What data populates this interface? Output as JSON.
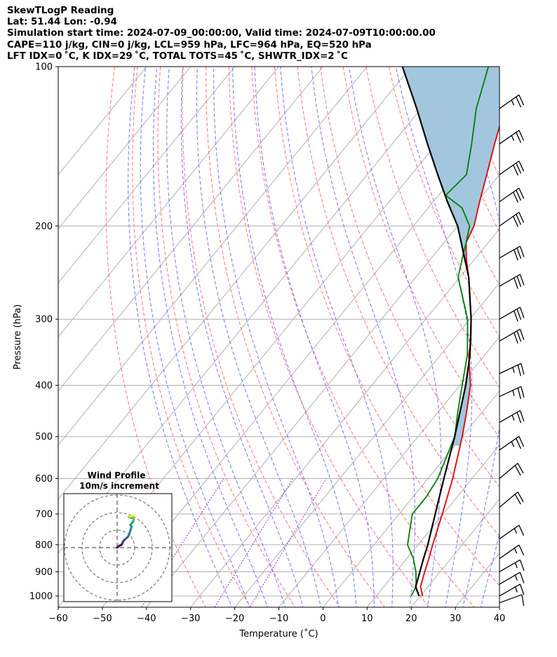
{
  "header": {
    "line1": "SkewTLogP Reading",
    "line2": "Lat: 51.44   Lon: -0.94",
    "line3": "Simulation start time: 2024-07-09_00:00:00, Valid time: 2024-07-09T10:00:00.00",
    "line4": "CAPE=110 j/kg, CIN=0 j/kg, LCL=959 hPa, LFC=964 hPa, EQ=520 hPa",
    "line5": "LFT IDX=0 ˚C, K IDX=29 ˚C, TOTAL TOTS=45 ˚C, SHWTR_IDX=2 ˚C"
  },
  "colors": {
    "temperature": "#e50000",
    "dewpoint": "#008000",
    "parcel": "#000000",
    "cape_fill": "#a3c6df",
    "dry_adiabat": "#ff6666",
    "moist_adiabat": "#6666ff",
    "mixing_ratio": "#9933cc",
    "isotherm": "#aaaaaa"
  },
  "chart_data": [
    {
      "type": "line",
      "title": "SkewTLogP Reading",
      "xlabel": "Temperature (˚C)",
      "ylabel": "Pressure (hPa)",
      "xlim": [
        -60,
        40
      ],
      "ylim": [
        1050,
        100
      ],
      "yscale": "log",
      "skew": true,
      "grid": true,
      "xticks": [
        -60,
        -50,
        -40,
        -30,
        -20,
        -10,
        0,
        10,
        20,
        30,
        40
      ],
      "yticks": [
        1000,
        900,
        800,
        700,
        600,
        500,
        400,
        300,
        200,
        100
      ],
      "series": [
        {
          "role": "temperature",
          "points": [
            [
              1000,
              20.5
            ],
            [
              960,
              18.3
            ],
            [
              900,
              16.5
            ],
            [
              850,
              15.0
            ],
            [
              800,
              13.3
            ],
            [
              700,
              9.8
            ],
            [
              600,
              5.6
            ],
            [
              500,
              0.0
            ],
            [
              450,
              -3.5
            ],
            [
              400,
              -7.6
            ],
            [
              350,
              -13.7
            ],
            [
              330,
              -15.7
            ],
            [
              300,
              -19.7
            ],
            [
              250,
              -28.0
            ],
            [
              230,
              -32.1
            ],
            [
              215,
              -35.0
            ],
            [
              200,
              -36.3
            ],
            [
              180,
              -39.5
            ],
            [
              160,
              -42.9
            ],
            [
              140,
              -46.8
            ],
            [
              120,
              -51.1
            ],
            [
              110,
              -53.5
            ],
            [
              100,
              -57.2
            ]
          ]
        },
        {
          "role": "dewpoint",
          "points": [
            [
              1000,
              17.9
            ],
            [
              960,
              17.3
            ],
            [
              900,
              14.5
            ],
            [
              850,
              11.5
            ],
            [
              800,
              7.6
            ],
            [
              700,
              3.0
            ],
            [
              650,
              3.0
            ],
            [
              600,
              2.2
            ],
            [
              500,
              -1.7
            ],
            [
              450,
              -5.5
            ],
            [
              400,
              -9.5
            ],
            [
              350,
              -14.0
            ],
            [
              300,
              -20.5
            ],
            [
              250,
              -30.4
            ],
            [
              230,
              -33.0
            ],
            [
              215,
              -35.0
            ],
            [
              200,
              -37.3
            ],
            [
              185,
              -42.3
            ],
            [
              175,
              -48.4
            ],
            [
              160,
              -47.5
            ],
            [
              140,
              -52.0
            ],
            [
              120,
              -57.5
            ],
            [
              100,
              -62.5
            ]
          ]
        },
        {
          "role": "parcel",
          "points": [
            [
              1000,
              19.7
            ],
            [
              960,
              17.2
            ],
            [
              900,
              15.4
            ],
            [
              850,
              13.8
            ],
            [
              800,
              12.2
            ],
            [
              700,
              8.2
            ],
            [
              600,
              3.6
            ],
            [
              500,
              -1.7
            ],
            [
              450,
              -5.0
            ],
            [
              400,
              -8.7
            ],
            [
              350,
              -13.4
            ],
            [
              300,
              -19.7
            ],
            [
              250,
              -28.0
            ],
            [
              200,
              -40.0
            ],
            [
              180,
              -46.8
            ],
            [
              160,
              -54.0
            ],
            [
              140,
              -62.0
            ],
            [
              120,
              -71.0
            ],
            [
              100,
              -82.0
            ]
          ]
        }
      ],
      "wind_barbs": [
        {
          "p": 1030,
          "dir": 250,
          "kt": 10
        },
        {
          "p": 1000,
          "dir": 240,
          "kt": 15
        },
        {
          "p": 950,
          "dir": 240,
          "kt": 15
        },
        {
          "p": 900,
          "dir": 240,
          "kt": 15
        },
        {
          "p": 850,
          "dir": 235,
          "kt": 15
        },
        {
          "p": 780,
          "dir": 235,
          "kt": 15
        },
        {
          "p": 680,
          "dir": 230,
          "kt": 20
        },
        {
          "p": 600,
          "dir": 230,
          "kt": 20
        },
        {
          "p": 530,
          "dir": 235,
          "kt": 25
        },
        {
          "p": 470,
          "dir": 240,
          "kt": 25
        },
        {
          "p": 420,
          "dir": 245,
          "kt": 25
        },
        {
          "p": 380,
          "dir": 245,
          "kt": 25
        },
        {
          "p": 330,
          "dir": 240,
          "kt": 30
        },
        {
          "p": 300,
          "dir": 240,
          "kt": 30
        },
        {
          "p": 260,
          "dir": 240,
          "kt": 30
        },
        {
          "p": 230,
          "dir": 240,
          "kt": 30
        },
        {
          "p": 200,
          "dir": 235,
          "kt": 30
        },
        {
          "p": 180,
          "dir": 235,
          "kt": 30
        },
        {
          "p": 160,
          "dir": 235,
          "kt": 30
        },
        {
          "p": 140,
          "dir": 235,
          "kt": 25
        },
        {
          "p": 120,
          "dir": 235,
          "kt": 25
        }
      ]
    },
    {
      "type": "scatter",
      "title": "Wind Profile",
      "subtitle": "10m/s increment",
      "rings": [
        10,
        20,
        30
      ],
      "grid": true,
      "points": [
        [
          0.0,
          0.0
        ],
        [
          2.5,
          1.8
        ],
        [
          4.5,
          2.5
        ],
        [
          6.0,
          4.0
        ],
        [
          6.5,
          5.5
        ],
        [
          9.0,
          8.0
        ],
        [
          12.0,
          10.0
        ],
        [
          13.5,
          12.0
        ],
        [
          15.0,
          16.0
        ],
        [
          16.5,
          20.0
        ],
        [
          15.0,
          21.5
        ],
        [
          17.5,
          24.0
        ],
        [
          19.0,
          26.5
        ],
        [
          18.5,
          28.0
        ],
        [
          14.0,
          28.5
        ],
        [
          13.0,
          29.0
        ],
        [
          15.5,
          30.0
        ],
        [
          18.0,
          30.5
        ],
        [
          19.5,
          30.0
        ]
      ]
    }
  ]
}
